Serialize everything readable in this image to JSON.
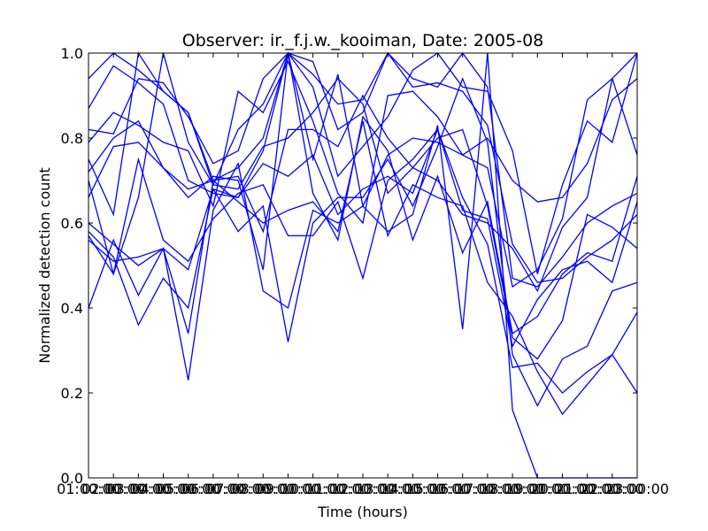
{
  "chart_data": {
    "type": "line",
    "title": "Observer: ir._f.j.w._kooiman, Date: 2005-08",
    "xlabel": "Time (hours)",
    "ylabel": "Normalized detection count",
    "ylim": [
      0,
      1
    ],
    "xlim": [
      1,
      23
    ],
    "grid": false,
    "legend": "none",
    "line_color": "#0000ff",
    "x_ticks": [
      {
        "value": 1,
        "label": "01:00:00"
      },
      {
        "value": 3,
        "label": "03:00:00"
      },
      {
        "value": 5,
        "label": "05:00:00"
      },
      {
        "value": 7,
        "label": "07:00:00"
      },
      {
        "value": 9,
        "label": "09:00:00"
      },
      {
        "value": 11,
        "label": "11:00:00"
      },
      {
        "value": 13,
        "label": "13:00:00"
      },
      {
        "value": 15,
        "label": "15:00:00"
      },
      {
        "value": 17,
        "label": "17:00:00"
      },
      {
        "value": 19,
        "label": "19:00:00"
      },
      {
        "value": 21,
        "label": "21:00:00"
      },
      {
        "value": 23,
        "label": "23:00:00"
      }
    ],
    "x_ticks_overlap": [
      {
        "value": 2,
        "label": "02:00:00"
      },
      {
        "value": 4,
        "label": "04:00:00"
      },
      {
        "value": 6,
        "label": "06:00:00"
      },
      {
        "value": 8,
        "label": "08:00:00"
      },
      {
        "value": 10,
        "label": "10:00:00"
      },
      {
        "value": 12,
        "label": "12:00:00"
      },
      {
        "value": 14,
        "label": "14:00:00"
      },
      {
        "value": 16,
        "label": "16:00:00"
      },
      {
        "value": 18,
        "label": "18:00:00"
      },
      {
        "value": 20,
        "label": "20:00:00"
      },
      {
        "value": 22,
        "label": "22:00:00"
      }
    ],
    "y_ticks": [
      {
        "value": 0.0,
        "label": "0.0"
      },
      {
        "value": 0.2,
        "label": "0.2"
      },
      {
        "value": 0.4,
        "label": "0.4"
      },
      {
        "value": 0.6,
        "label": "0.6"
      },
      {
        "value": 0.8,
        "label": "0.8"
      },
      {
        "value": 1.0,
        "label": "1.0"
      }
    ],
    "x": [
      1,
      2,
      3,
      4,
      5,
      6,
      7,
      8,
      9,
      10,
      11,
      12,
      13,
      14,
      15,
      16,
      17,
      18,
      19,
      20,
      21,
      22,
      23
    ],
    "series": [
      {
        "values": [
          0.94,
          1.0,
          0.96,
          0.91,
          0.86,
          0.7,
          0.73,
          0.8,
          1.0,
          0.98,
          0.82,
          0.86,
          1.0,
          0.92,
          0.93,
          0.91,
          0.83,
          0.55,
          0.46,
          0.47,
          0.52,
          0.56,
          0.62
        ]
      },
      {
        "values": [
          0.87,
          0.97,
          0.93,
          0.88,
          0.7,
          0.67,
          0.66,
          0.77,
          1.0,
          0.95,
          0.88,
          0.89,
          1.0,
          0.94,
          0.92,
          1.0,
          0.92,
          0.47,
          0.45,
          0.52,
          0.6,
          0.64,
          0.67
        ]
      },
      {
        "values": [
          0.82,
          0.81,
          0.94,
          0.93,
          0.85,
          0.74,
          0.77,
          0.94,
          1.0,
          0.92,
          0.71,
          0.78,
          0.85,
          0.96,
          1.0,
          0.92,
          0.91,
          0.77,
          0.48,
          0.69,
          0.84,
          0.79,
          1.0
        ]
      },
      {
        "values": [
          0.79,
          0.86,
          0.83,
          0.79,
          0.77,
          0.64,
          0.91,
          0.86,
          0.98,
          0.84,
          0.67,
          0.6,
          0.9,
          0.91,
          0.85,
          0.76,
          0.8,
          0.7,
          0.65,
          0.66,
          0.74,
          0.89,
          0.94
        ]
      },
      {
        "values": [
          0.75,
          0.62,
          1.0,
          0.91,
          0.86,
          0.69,
          0.82,
          0.88,
          1.0,
          0.75,
          0.95,
          0.64,
          0.76,
          0.8,
          0.79,
          0.76,
          0.73,
          0.45,
          0.49,
          0.61,
          0.89,
          0.94,
          0.76
        ]
      },
      {
        "values": [
          0.7,
          0.48,
          0.66,
          1.0,
          0.79,
          0.69,
          0.68,
          0.78,
          0.8,
          0.86,
          0.94,
          0.88,
          0.67,
          0.73,
          0.7,
          0.62,
          0.6,
          0.54,
          0.44,
          0.59,
          0.66,
          0.94,
          1.0
        ]
      },
      {
        "values": [
          0.66,
          0.78,
          0.79,
          0.73,
          0.68,
          0.7,
          0.71,
          0.58,
          0.82,
          0.82,
          0.78,
          0.9,
          0.8,
          0.73,
          0.8,
          0.82,
          0.64,
          0.33,
          0.28,
          0.37,
          0.62,
          0.59,
          0.54
        ]
      },
      {
        "values": [
          0.6,
          0.55,
          0.5,
          0.54,
          0.49,
          0.68,
          0.66,
          0.74,
          0.71,
          0.76,
          0.62,
          0.68,
          0.71,
          0.67,
          0.82,
          0.63,
          0.61,
          0.31,
          0.42,
          0.49,
          0.51,
          0.46,
          0.65
        ]
      },
      {
        "values": [
          0.57,
          0.48,
          0.75,
          0.56,
          0.51,
          0.61,
          0.67,
          0.69,
          0.57,
          0.57,
          0.65,
          0.47,
          0.7,
          0.75,
          0.82,
          0.66,
          0.55,
          0.26,
          0.27,
          0.2,
          0.25,
          0.29,
          0.2
        ]
      },
      {
        "values": [
          0.56,
          0.51,
          0.52,
          0.54,
          0.34,
          0.7,
          0.65,
          0.6,
          0.63,
          0.65,
          0.58,
          0.84,
          0.57,
          0.69,
          0.66,
          0.64,
          0.46,
          0.38,
          0.25,
          0.15,
          0.22,
          0.29,
          0.39
        ]
      },
      {
        "values": [
          0.4,
          0.56,
          0.43,
          0.54,
          0.23,
          0.63,
          0.74,
          0.44,
          0.4,
          0.63,
          0.6,
          0.64,
          0.58,
          0.62,
          0.83,
          0.35,
          1.0,
          0.16,
          0.0,
          0.0,
          0.0,
          0.0,
          0.0
        ]
      },
      {
        "values": [
          0.58,
          0.52,
          0.36,
          0.47,
          0.4,
          0.68,
          0.58,
          0.64,
          0.32,
          0.6,
          0.66,
          0.66,
          0.75,
          0.64,
          0.78,
          0.94,
          0.79,
          0.29,
          0.17,
          0.28,
          0.31,
          0.44,
          0.46
        ]
      },
      {
        "values": [
          0.72,
          0.8,
          0.84,
          0.73,
          0.66,
          0.71,
          0.7,
          0.49,
          1.0,
          0.67,
          0.56,
          0.85,
          0.77,
          0.56,
          0.71,
          0.53,
          0.65,
          0.34,
          0.38,
          0.48,
          0.53,
          0.51,
          0.71
        ]
      }
    ]
  }
}
